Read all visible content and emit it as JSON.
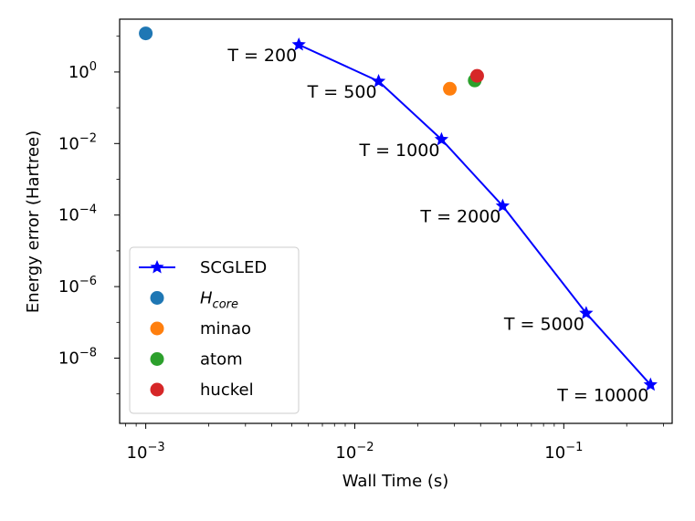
{
  "chart_data": {
    "type": "scatter",
    "xlabel": "Wall Time (s)",
    "ylabel": "Energy error (Hartree)",
    "xscale": "log",
    "yscale": "log",
    "xlim": [
      0.00075,
      0.33
    ],
    "ylim": [
      1.5e-10,
      30
    ],
    "xticks": [
      {
        "value": 0.001,
        "base": "10",
        "exp": "−3"
      },
      {
        "value": 0.01,
        "base": "10",
        "exp": "−2"
      },
      {
        "value": 0.1,
        "base": "10",
        "exp": "−1"
      }
    ],
    "yticks": [
      {
        "value": 1,
        "base": "10",
        "exp": "0"
      },
      {
        "value": 0.01,
        "base": "10",
        "exp": "−2"
      },
      {
        "value": 0.0001,
        "base": "10",
        "exp": "−4"
      },
      {
        "value": 1e-06,
        "base": "10",
        "exp": "−6"
      },
      {
        "value": 1e-08,
        "base": "10",
        "exp": "−8"
      }
    ],
    "series": [
      {
        "name": "SCGLED",
        "style": "line-star",
        "color": "#0000ff",
        "x": [
          0.0054,
          0.013,
          0.026,
          0.051,
          0.128,
          0.26
        ],
        "y": [
          5.8,
          0.55,
          0.013,
          0.00018,
          1.8e-07,
          1.8e-09
        ],
        "labels": [
          "T = 200",
          "T = 500",
          "T = 1000",
          "T = 2000",
          "T = 5000",
          "T = 10000"
        ]
      },
      {
        "name": "H",
        "name_sub": "core",
        "style": "dot",
        "color": "#1f77b4",
        "x": [
          0.001
        ],
        "y": [
          12
        ]
      },
      {
        "name": "minao",
        "style": "dot",
        "color": "#ff7f0e",
        "x": [
          0.0285
        ],
        "y": [
          0.34
        ]
      },
      {
        "name": "atom",
        "style": "dot",
        "color": "#2ca02c",
        "x": [
          0.0375
        ],
        "y": [
          0.58
        ]
      },
      {
        "name": "huckel",
        "style": "dot",
        "color": "#d62728",
        "x": [
          0.0385
        ],
        "y": [
          0.78
        ]
      }
    ],
    "legend": {
      "position": "lower-left"
    }
  }
}
